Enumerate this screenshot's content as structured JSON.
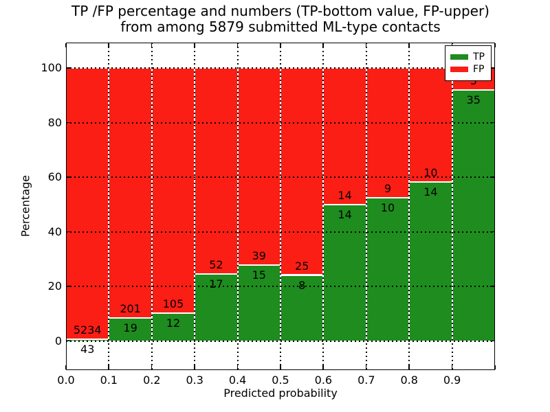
{
  "figure": {
    "title_line1": "TP /FP percentage and numbers (TP-bottom value, FP-upper)",
    "title_line2": "from among 5879 submitted ML-type contacts",
    "background": "#ffffff"
  },
  "chart_data": {
    "type": "bar",
    "variant": "stacked-100-percent",
    "title": "TP /FP percentage and numbers (TP-bottom value, FP-upper) from among 5879 submitted ML-type contacts",
    "xlabel": "Predicted probability",
    "ylabel": "Percentage",
    "total_submitted_contacts": 5879,
    "xlim": [
      0.0,
      1.0
    ],
    "ylim": [
      -10.6,
      109.4
    ],
    "x_tick_labels": [
      "0.0",
      "0.1",
      "0.2",
      "0.3",
      "0.4",
      "0.5",
      "0.6",
      "0.7",
      "0.8",
      "0.9"
    ],
    "y_tick_values": [
      0,
      20,
      40,
      60,
      80,
      100
    ],
    "grid": {
      "visible": true,
      "style": "dotted",
      "color": "#000000"
    },
    "bin_width": 0.1,
    "categories": [
      "0.0-0.1",
      "0.1-0.2",
      "0.2-0.3",
      "0.3-0.4",
      "0.4-0.5",
      "0.5-0.6",
      "0.6-0.7",
      "0.7-0.8",
      "0.8-0.9",
      "0.9-1.0"
    ],
    "series": [
      {
        "name": "TP",
        "color": "#1e8c1e",
        "counts": [
          43,
          19,
          12,
          17,
          15,
          8,
          14,
          10,
          14,
          35
        ]
      },
      {
        "name": "FP",
        "color": "#fa1e15",
        "counts": [
          5234,
          201,
          105,
          52,
          39,
          25,
          14,
          9,
          10,
          3
        ]
      }
    ],
    "tp_percent_by_bin": [
      0.81,
      8.64,
      10.26,
      24.64,
      27.78,
      24.24,
      50.0,
      52.63,
      58.33,
      92.11
    ],
    "bar_edge_color": "#ffffff",
    "label_annotations": "TP count below segment boundary, FP count above segment boundary",
    "legend_position": "upper right"
  },
  "legend": {
    "items": [
      {
        "label": "TP",
        "color": "#1e8c1e"
      },
      {
        "label": "FP",
        "color": "#fa1e15"
      }
    ]
  }
}
